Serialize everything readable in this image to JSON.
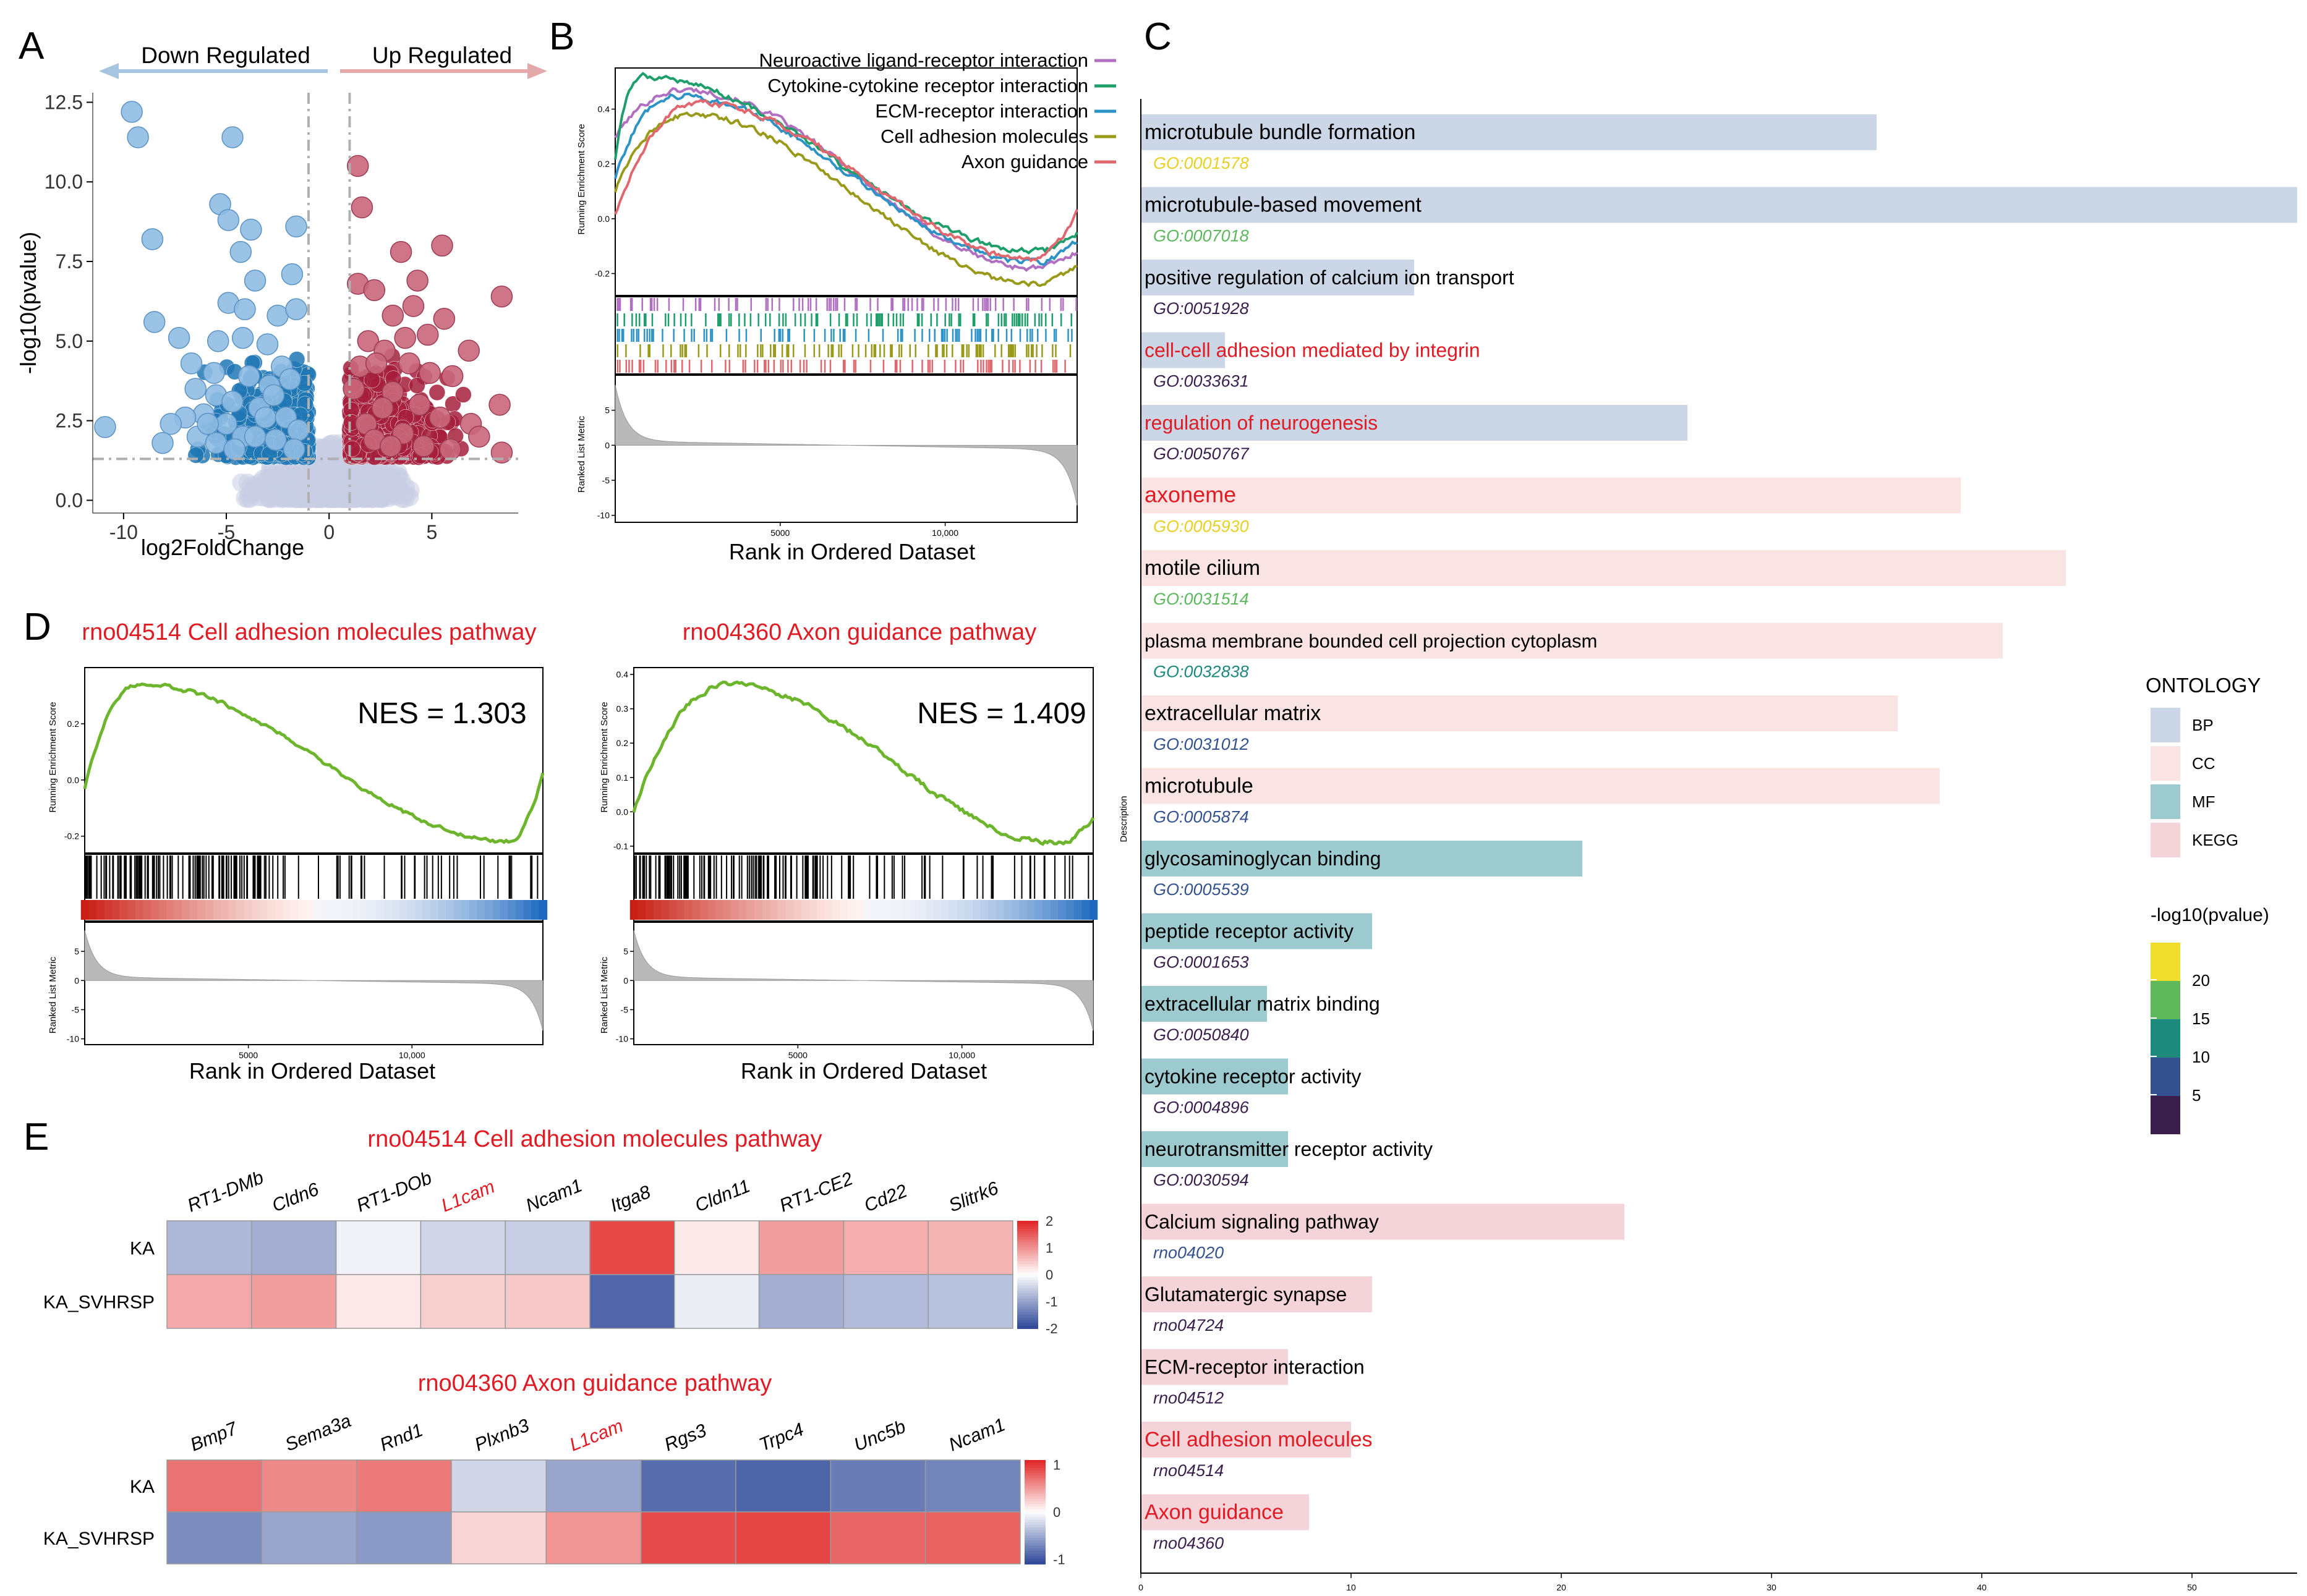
{
  "figure": {
    "panel_letters": [
      "A",
      "B",
      "C",
      "D",
      "E"
    ]
  },
  "colors": {
    "down": "#1f77b4",
    "down_light": "#8fbde3",
    "up": "#a61e3c",
    "up_light": "#c9677b",
    "ns": "#c8cde3",
    "arrow_down": "#a7c4e0",
    "arrow_up": "#e3a8a8",
    "red_text": "#e01b24",
    "gsea_green": "#6cb52d",
    "BP": "#cbd7e6",
    "CC": "#f9e3e3",
    "MF": "#9ccace",
    "KEGG": "#f4d3d9"
  },
  "chart_data": [
    {
      "id": "A",
      "type": "scatter",
      "title": "",
      "xlabel": "log2FoldChange",
      "ylabel": "-log10(pvalue)",
      "xlim": [
        -11.5,
        9.2
      ],
      "ylim": [
        -0.4,
        12.8
      ],
      "xticks": [
        -10,
        -5,
        0,
        5
      ],
      "yticks": [
        0.0,
        2.5,
        5.0,
        7.5,
        10.0,
        12.5
      ],
      "ytick_labels": [
        "0.0",
        "2.5",
        "5.0",
        "7.5",
        "10.0",
        "12.5"
      ],
      "thresholds": {
        "log2fc": [
          -1,
          1
        ],
        "pvalue_line": 1.3
      },
      "annotations": {
        "left": "Down Regulated",
        "right": "Up Regulated"
      },
      "down_points": [
        [
          -9.6,
          12.2
        ],
        [
          -9.3,
          11.4
        ],
        [
          -4.7,
          11.4
        ],
        [
          -8.6,
          8.2
        ],
        [
          -5.3,
          9.3
        ],
        [
          -4.9,
          8.8
        ],
        [
          -3.8,
          8.5
        ],
        [
          -4.3,
          7.8
        ],
        [
          -1.6,
          8.6
        ],
        [
          -1.8,
          7.1
        ],
        [
          -3.6,
          6.9
        ],
        [
          -4.9,
          6.2
        ],
        [
          -4.1,
          6.0
        ],
        [
          -2.5,
          5.8
        ],
        [
          -4.2,
          5.1
        ],
        [
          -5.4,
          5.0
        ],
        [
          -7.3,
          5.1
        ],
        [
          -8.5,
          5.6
        ],
        [
          -1.6,
          6.0
        ],
        [
          -3.0,
          4.9
        ],
        [
          -6.7,
          4.3
        ],
        [
          -5.6,
          4.0
        ],
        [
          -2.9,
          3.6
        ],
        [
          -6.5,
          3.5
        ],
        [
          -5.5,
          3.3
        ],
        [
          -4.7,
          3.1
        ],
        [
          -3.4,
          2.9
        ],
        [
          -6.1,
          2.7
        ],
        [
          -7.0,
          2.6
        ],
        [
          -7.7,
          2.4
        ],
        [
          -5.0,
          2.4
        ],
        [
          -4.2,
          2.0
        ],
        [
          -6.4,
          2.0
        ],
        [
          -5.5,
          1.8
        ],
        [
          -8.1,
          1.8
        ],
        [
          -10.9,
          2.3
        ],
        [
          -2.3,
          4.2
        ],
        [
          -1.9,
          3.8
        ],
        [
          -2.7,
          3.3
        ],
        [
          -3.1,
          2.6
        ],
        [
          -2.1,
          2.6
        ],
        [
          -1.5,
          2.2
        ],
        [
          -3.6,
          2.0
        ],
        [
          -2.6,
          1.9
        ],
        [
          -1.7,
          1.6
        ],
        [
          -4.6,
          1.6
        ],
        [
          -3.9,
          3.9
        ],
        [
          -5.9,
          2.4
        ]
      ],
      "up_points": [
        [
          1.4,
          10.5
        ],
        [
          1.6,
          9.2
        ],
        [
          3.5,
          7.8
        ],
        [
          5.5,
          8.0
        ],
        [
          4.3,
          6.9
        ],
        [
          1.4,
          6.8
        ],
        [
          2.2,
          6.6
        ],
        [
          4.1,
          6.1
        ],
        [
          8.4,
          6.4
        ],
        [
          5.6,
          5.7
        ],
        [
          3.7,
          5.1
        ],
        [
          3.1,
          5.8
        ],
        [
          4.8,
          5.2
        ],
        [
          6.8,
          4.7
        ],
        [
          1.9,
          5.0
        ],
        [
          2.7,
          4.7
        ],
        [
          3.9,
          4.3
        ],
        [
          4.9,
          4.0
        ],
        [
          6.0,
          3.9
        ],
        [
          1.5,
          4.2
        ],
        [
          2.3,
          4.3
        ],
        [
          8.3,
          3.0
        ],
        [
          6.9,
          2.4
        ],
        [
          7.3,
          2.0
        ],
        [
          8.4,
          1.5
        ],
        [
          5.4,
          2.6
        ],
        [
          4.4,
          3.0
        ],
        [
          3.1,
          3.4
        ],
        [
          2.6,
          2.9
        ],
        [
          5.9,
          1.6
        ],
        [
          1.2,
          3.5
        ],
        [
          1.8,
          2.4
        ],
        [
          3.6,
          2.1
        ],
        [
          4.6,
          1.7
        ],
        [
          2.2,
          1.9
        ],
        [
          3.0,
          1.7
        ]
      ]
    },
    {
      "id": "B",
      "type": "line",
      "subtype": "gsea",
      "xlabel": "Rank in Ordered Dataset",
      "ylabel_top": "Running Enrichment Score",
      "ylabel_bottom": "Ranked List Metric",
      "n_genes": 14000,
      "xticks": [
        5000,
        10000
      ],
      "xtick_labels": [
        "5000",
        "10,000"
      ],
      "es_ylim": [
        -0.28,
        0.55
      ],
      "es_yticks": [
        -0.2,
        0.0,
        0.2,
        0.4
      ],
      "es_ytick_labels": [
        "-0.2",
        "0.0",
        "0.2",
        "0.4"
      ],
      "metric_ylim": [
        -11,
        10
      ],
      "metric_yticks": [
        -10,
        -5,
        0,
        5
      ],
      "metric_ytick_labels": [
        "-10",
        "-5",
        "0",
        "5"
      ],
      "series": [
        {
          "name": "Neuroactive ligand-receptor interaction",
          "color": "#b06fc1",
          "peak_rank": 2100,
          "peak": 0.47,
          "start": 0.3,
          "end": -0.12,
          "min": -0.18
        },
        {
          "name": "Cytokine-cytokine receptor interaction",
          "color": "#1e9e6a",
          "peak_rank": 800,
          "peak": 0.52,
          "start": 0.22,
          "end": -0.05,
          "min": -0.12
        },
        {
          "name": "ECM-receptor interaction",
          "color": "#2d93c6",
          "peak_rank": 1800,
          "peak": 0.45,
          "start": 0.15,
          "end": -0.08,
          "min": -0.16
        },
        {
          "name": "Cell adhesion molecules",
          "color": "#9a9a1a",
          "peak_rank": 2200,
          "peak": 0.38,
          "start": 0.1,
          "end": -0.18,
          "min": -0.24
        },
        {
          "name": "Axon guidance",
          "color": "#e0676e",
          "peak_rank": 2600,
          "peak": 0.42,
          "start": 0.02,
          "end": 0.02,
          "min": -0.15
        }
      ]
    },
    {
      "id": "C",
      "type": "bar",
      "orientation": "horizontal",
      "ylabel": "Description",
      "xlim": [
        0,
        55
      ],
      "xticks": [
        0,
        10,
        20,
        30,
        40,
        50
      ],
      "legend": {
        "title": "ONTOLOGY",
        "entries": [
          "BP",
          "CC",
          "MF",
          "KEGG"
        ],
        "pvalue_title": "-log10(pvalue)",
        "pvalue_ticks": [
          20,
          15,
          10,
          5
        ],
        "pvalue_colors": [
          "#f0dc2a",
          "#5fb85b",
          "#1e8a7e",
          "#34528f",
          "#3a1f4c"
        ]
      },
      "items": [
        {
          "label": "microtubule bundle formation",
          "id": "GO:0001578",
          "value": 35.0,
          "ontology": "BP",
          "label_color": "#000000",
          "id_color": "#e8d026",
          "label_size": 34
        },
        {
          "label": "microtubule-based movement",
          "id": "GO:0007018",
          "value": 55.0,
          "ontology": "BP",
          "label_color": "#000000",
          "id_color": "#5cb85c",
          "label_size": 34
        },
        {
          "label": "positive regulation of calcium ion transport",
          "id": "GO:0051928",
          "value": 13.0,
          "ontology": "BP",
          "label_color": "#000000",
          "id_color": "#3a1f4c",
          "label_size": 32
        },
        {
          "label": "cell-cell adhesion mediated by integrin",
          "id": "GO:0033631",
          "value": 4.0,
          "ontology": "BP",
          "label_color": "#e01b24",
          "id_color": "#3a1f4c",
          "label_size": 32
        },
        {
          "label": "regulation of neurogenesis",
          "id": "GO:0050767",
          "value": 26.0,
          "ontology": "BP",
          "label_color": "#e01b24",
          "id_color": "#3a1f4c",
          "label_size": 32
        },
        {
          "label": "axoneme",
          "id": "GO:0005930",
          "value": 39.0,
          "ontology": "CC",
          "label_color": "#e01b24",
          "id_color": "#e8d026",
          "label_size": 36
        },
        {
          "label": "motile cilium",
          "id": "GO:0031514",
          "value": 44.0,
          "ontology": "CC",
          "label_color": "#000000",
          "id_color": "#5cb85c",
          "label_size": 34
        },
        {
          "label": "plasma membrane bounded cell projection cytoplasm",
          "id": "GO:0032838",
          "value": 41.0,
          "ontology": "CC",
          "label_color": "#000000",
          "id_color": "#1e8a7e",
          "label_size": 31
        },
        {
          "label": "extracellular matrix",
          "id": "GO:0031012",
          "value": 36.0,
          "ontology": "CC",
          "label_color": "#000000",
          "id_color": "#34528f",
          "label_size": 34
        },
        {
          "label": "microtubule",
          "id": "GO:0005874",
          "value": 38.0,
          "ontology": "CC",
          "label_color": "#000000",
          "id_color": "#34528f",
          "label_size": 34
        },
        {
          "label": "glycosaminoglycan binding",
          "id": "GO:0005539",
          "value": 21.0,
          "ontology": "MF",
          "label_color": "#000000",
          "id_color": "#34528f",
          "label_size": 32
        },
        {
          "label": "peptide receptor activity",
          "id": "GO:0001653",
          "value": 11.0,
          "ontology": "MF",
          "label_color": "#000000",
          "id_color": "#3a1f4c",
          "label_size": 32
        },
        {
          "label": "extracellular matrix binding",
          "id": "GO:0050840",
          "value": 6.0,
          "ontology": "MF",
          "label_color": "#000000",
          "id_color": "#3a1f4c",
          "label_size": 32
        },
        {
          "label": "cytokine receptor activity",
          "id": "GO:0004896",
          "value": 7.0,
          "ontology": "MF",
          "label_color": "#000000",
          "id_color": "#3a1f4c",
          "label_size": 32
        },
        {
          "label": "neurotransmitter receptor activity",
          "id": "GO:0030594",
          "value": 7.0,
          "ontology": "MF",
          "label_color": "#000000",
          "id_color": "#3a1f4c",
          "label_size": 32
        },
        {
          "label": "Calcium signaling pathway",
          "id": "rno04020",
          "value": 23.0,
          "ontology": "KEGG",
          "label_color": "#000000",
          "id_color": "#34528f",
          "label_size": 32
        },
        {
          "label": "Glutamatergic synapse",
          "id": "rno04724",
          "value": 11.0,
          "ontology": "KEGG",
          "label_color": "#000000",
          "id_color": "#3a1f4c",
          "label_size": 32
        },
        {
          "label": "ECM-receptor interaction",
          "id": "rno04512",
          "value": 7.0,
          "ontology": "KEGG",
          "label_color": "#000000",
          "id_color": "#3a1f4c",
          "label_size": 32
        },
        {
          "label": "Cell adhesion molecules",
          "id": "rno04514",
          "value": 10.0,
          "ontology": "KEGG",
          "label_color": "#e01b24",
          "id_color": "#3a1f4c",
          "label_size": 34
        },
        {
          "label": "Axon guidance",
          "id": "rno04360",
          "value": 8.0,
          "ontology": "KEGG",
          "label_color": "#e01b24",
          "id_color": "#3a1f4c",
          "label_size": 34
        }
      ]
    },
    {
      "id": "D1",
      "type": "line",
      "subtype": "gsea",
      "title": "rno04514 Cell adhesion molecules pathway",
      "nes": "NES = 1.303",
      "xlabel": "Rank in Ordered Dataset",
      "ylabel_top": "Running Enrichment Score",
      "ylabel_bottom": "Ranked List Metric",
      "n_genes": 14000,
      "xticks": [
        5000,
        10000
      ],
      "xtick_labels": [
        "5000",
        "10,000"
      ],
      "es_ylim": [
        -0.26,
        0.4
      ],
      "es_yticks": [
        -0.2,
        0.0,
        0.2
      ],
      "es_ytick_labels": [
        "-0.2",
        "0.0",
        "0.2"
      ],
      "metric_ylim": [
        -11,
        10
      ],
      "metric_yticks": [
        -10,
        -5,
        0,
        5
      ],
      "metric_ytick_labels": [
        "-10",
        "-5",
        "0",
        "5"
      ],
      "peak_rank": 1700,
      "peak": 0.34,
      "start": -0.03,
      "min": -0.22,
      "end": 0.02
    },
    {
      "id": "D2",
      "type": "line",
      "subtype": "gsea",
      "title": "rno04360 Axon guidance pathway",
      "nes": "NES = 1.409",
      "xlabel": "Rank in Ordered Dataset",
      "ylabel_top": "Running Enrichment Score",
      "ylabel_bottom": "Ranked List Metric",
      "n_genes": 14000,
      "xticks": [
        5000,
        10000
      ],
      "xtick_labels": [
        "5000",
        "10,000"
      ],
      "es_ylim": [
        -0.12,
        0.42
      ],
      "es_yticks": [
        -0.1,
        0.0,
        0.1,
        0.2,
        0.3,
        0.4
      ],
      "es_ytick_labels": [
        "-0.1",
        "0.0",
        "0.1",
        "0.2",
        "0.3",
        "0.4"
      ],
      "metric_ylim": [
        -11,
        10
      ],
      "metric_yticks": [
        -10,
        -5,
        0,
        5
      ],
      "metric_ytick_labels": [
        "-10",
        "-5",
        "0",
        "5"
      ],
      "peak_rank": 2900,
      "peak": 0.37,
      "start": 0.0,
      "min": -0.09,
      "end": -0.02
    },
    {
      "id": "E1",
      "type": "heatmap",
      "title": "rno04514 Cell adhesion molecules pathway",
      "rows": [
        "KA",
        "KA_SVHRSP"
      ],
      "cols": [
        "RT1-DMb",
        "Cldn6",
        "RT1-DOb",
        "L1cam",
        "Ncam1",
        "Itga8",
        "Cldn11",
        "RT1-CE2",
        "Cd22",
        "Slitrk6"
      ],
      "highlight_cols": [
        "L1cam"
      ],
      "values": [
        [
          -0.8,
          -0.9,
          -0.15,
          -0.45,
          -0.55,
          1.7,
          0.2,
          0.9,
          0.75,
          0.7
        ],
        [
          0.8,
          0.9,
          0.2,
          0.45,
          0.5,
          -1.7,
          -0.2,
          -0.9,
          -0.75,
          -0.7
        ]
      ],
      "scale_ticks": [
        2,
        1,
        0,
        -1,
        -2
      ],
      "scale_tick_labels": [
        "2",
        "1",
        "0",
        "-1",
        "-2"
      ],
      "vlim": [
        -2,
        2
      ]
    },
    {
      "id": "E2",
      "type": "heatmap",
      "title": "rno04360 Axon guidance pathway",
      "rows": [
        "KA",
        "KA_SVHRSP"
      ],
      "cols": [
        "Bmp7",
        "Sema3a",
        "Rnd1",
        "Plxnb3",
        "L1cam",
        "Rgs3",
        "Trpc4",
        "Unc5b",
        "Ncam1"
      ],
      "highlight_cols": [
        "L1cam"
      ],
      "values": [
        [
          0.72,
          0.6,
          0.68,
          -0.25,
          -0.55,
          -0.9,
          -0.95,
          -0.8,
          -0.75
        ],
        [
          -0.7,
          -0.55,
          -0.62,
          0.22,
          0.55,
          0.92,
          0.95,
          0.78,
          0.8
        ]
      ],
      "scale_ticks": [
        1,
        0,
        -1
      ],
      "scale_tick_labels": [
        "1",
        "0",
        "-1"
      ],
      "vlim": [
        -1.1,
        1.1
      ]
    }
  ]
}
